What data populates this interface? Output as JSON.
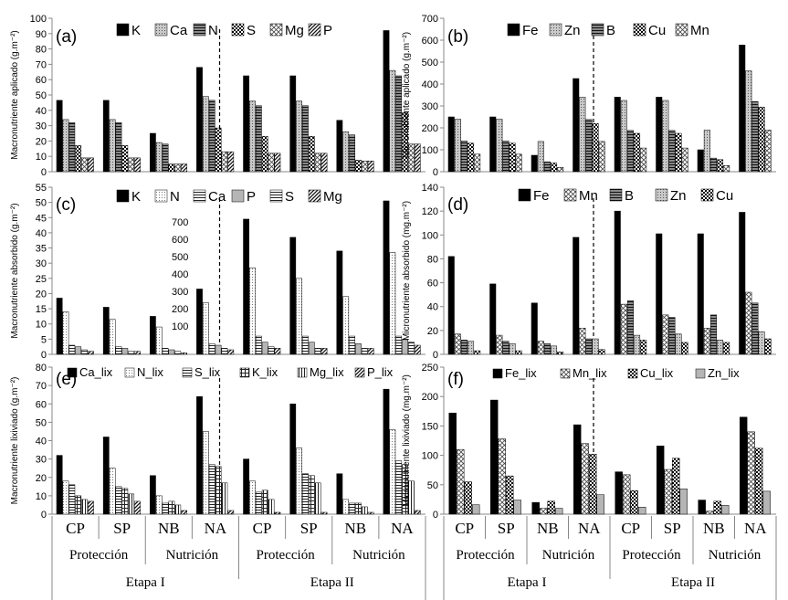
{
  "xaxis": {
    "treatments": [
      "CP",
      "SP",
      "NB",
      "NA",
      "CP",
      "SP",
      "NB",
      "NA"
    ],
    "groups": [
      "Protección",
      "Nutrición",
      "Protección",
      "Nutrición"
    ],
    "stages": [
      "Etapa I",
      "Etapa II"
    ]
  },
  "styles": {
    "K": {
      "type": "solid",
      "color": "#000000"
    },
    "Ca": {
      "type": "dots",
      "color": "#9a9a9a"
    },
    "N": {
      "type": "hlines",
      "color": "#3a3a3a"
    },
    "S": {
      "type": "check",
      "color": "#000000"
    },
    "Mg": {
      "type": "diamond",
      "color": "#333333"
    },
    "P": {
      "type": "diag",
      "color": "#222222"
    },
    "Fe": {
      "type": "solid",
      "color": "#000000"
    },
    "Zn": {
      "type": "dots",
      "color": "#9a9a9a"
    },
    "B": {
      "type": "hlines",
      "color": "#3a3a3a"
    },
    "Cu": {
      "type": "check",
      "color": "#000000"
    },
    "Mn": {
      "type": "diamond",
      "color": "#333333"
    },
    "N_open": {
      "type": "dots_light",
      "color": "#aaaaaa"
    },
    "Ca_open": {
      "type": "hlines_open",
      "color": "#333333"
    },
    "S_open": {
      "type": "hlines_open",
      "color": "#333333"
    },
    "K_grid": {
      "type": "grid",
      "color": "#222222"
    },
    "Mg_v": {
      "type": "vlines",
      "color": "#333333"
    },
    "Zn_grey": {
      "type": "lightgrey",
      "color": "#a8a8a8"
    }
  },
  "chart_data": [
    {
      "id": "a",
      "panel_label": "(a)",
      "type": "bar",
      "ylabel": "Macronutriente aplicado (g.m⁻²)",
      "ylim": [
        0,
        100
      ],
      "yticks": [
        0,
        10,
        20,
        30,
        40,
        50,
        60,
        70,
        80,
        90,
        100
      ],
      "categories": [
        "CP",
        "SP",
        "NB",
        "NA",
        "CP",
        "SP",
        "NB",
        "NA"
      ],
      "series": [
        {
          "name": "K",
          "style": "K",
          "values": [
            46.5,
            46.5,
            25,
            68,
            62.5,
            62.5,
            33.5,
            92
          ]
        },
        {
          "name": "Ca",
          "style": "Ca",
          "values": [
            34,
            34,
            19,
            49,
            46,
            46,
            26,
            66
          ]
        },
        {
          "name": "N",
          "style": "N",
          "values": [
            32,
            32,
            18,
            46.5,
            43,
            43,
            24,
            62.5
          ]
        },
        {
          "name": "S",
          "style": "S",
          "values": [
            17,
            17,
            5,
            28.5,
            23,
            23,
            7.5,
            38.5
          ]
        },
        {
          "name": "Mg",
          "style": "Mg",
          "values": [
            9,
            9,
            5,
            13,
            12,
            12,
            7,
            18
          ]
        },
        {
          "name": "P",
          "style": "P",
          "values": [
            9,
            9,
            5,
            13,
            12,
            12,
            7,
            18
          ]
        }
      ]
    },
    {
      "id": "b",
      "panel_label": "(b)",
      "type": "bar",
      "ylabel": "Micronutriente aplicado (g.m⁻²)",
      "ylim": [
        0,
        700
      ],
      "yticks": [
        0,
        100,
        200,
        300,
        400,
        500,
        600,
        700
      ],
      "categories": [
        "CP",
        "SP",
        "NB",
        "NA",
        "CP",
        "SP",
        "NB",
        "NA"
      ],
      "series": [
        {
          "name": "Fe",
          "style": "Fe",
          "values": [
            250,
            250,
            75,
            425,
            340,
            340,
            100,
            578
          ]
        },
        {
          "name": "Zn",
          "style": "Zn",
          "values": [
            240,
            240,
            138,
            340,
            325,
            325,
            190,
            460
          ]
        },
        {
          "name": "B",
          "style": "B",
          "values": [
            140,
            140,
            45,
            238,
            188,
            188,
            62,
            320
          ]
        },
        {
          "name": "Cu",
          "style": "Cu",
          "values": [
            130,
            130,
            40,
            220,
            175,
            175,
            55,
            295
          ]
        },
        {
          "name": "Mn",
          "style": "Mn",
          "values": [
            80,
            80,
            20,
            138,
            108,
            108,
            28,
            190
          ]
        }
      ]
    },
    {
      "id": "c",
      "panel_label": "(c)",
      "type": "bar",
      "ylabel": "Macronutriente absorbido (g.m⁻²)",
      "ylim": [
        0,
        55
      ],
      "yticks": [
        0,
        5,
        10,
        15,
        20,
        25,
        30,
        35,
        40,
        45,
        50,
        55
      ],
      "inset_axis": {
        "ticks": [
          100,
          200,
          300,
          400,
          500,
          600,
          700
        ]
      },
      "categories": [
        "CP",
        "SP",
        "NB",
        "NA",
        "CP",
        "SP",
        "NB",
        "NA"
      ],
      "series": [
        {
          "name": "K",
          "style": "K",
          "values": [
            18.5,
            15.5,
            12.5,
            21.5,
            44.5,
            38.5,
            34,
            50.5
          ]
        },
        {
          "name": "N",
          "style": "N_open",
          "values": [
            14,
            11.5,
            9,
            17,
            28.5,
            25,
            19,
            33.5
          ]
        },
        {
          "name": "Ca",
          "style": "Ca_open",
          "values": [
            3,
            2.5,
            2,
            3.5,
            6,
            6,
            6,
            6
          ]
        },
        {
          "name": "P",
          "style": "Zn_grey",
          "values": [
            2.5,
            2,
            1.5,
            3,
            4,
            4,
            3.5,
            5
          ]
        },
        {
          "name": "S",
          "style": "S_open",
          "values": [
            1.5,
            1,
            1,
            2,
            2.5,
            2,
            2,
            4
          ]
        },
        {
          "name": "Mg",
          "style": "P",
          "values": [
            1,
            1,
            0.5,
            1.5,
            2,
            2,
            2,
            3
          ]
        }
      ]
    },
    {
      "id": "d",
      "panel_label": "(d)",
      "type": "bar",
      "ylabel": "Micronutriente absorbido (mg.m⁻²)",
      "ylim": [
        0,
        140
      ],
      "yticks": [
        0,
        20,
        40,
        60,
        80,
        100,
        120,
        140
      ],
      "categories": [
        "CP",
        "SP",
        "NB",
        "NA",
        "CP",
        "SP",
        "NB",
        "NA"
      ],
      "series": [
        {
          "name": "Fe",
          "style": "Fe",
          "values": [
            82,
            59,
            43,
            98,
            120,
            101,
            101,
            119
          ]
        },
        {
          "name": "Mn",
          "style": "Mn",
          "values": [
            17,
            16,
            11,
            22,
            42,
            33,
            22,
            52
          ]
        },
        {
          "name": "B",
          "style": "B",
          "values": [
            12,
            11,
            9,
            13,
            45,
            31,
            33,
            43
          ]
        },
        {
          "name": "Zn",
          "style": "Zn",
          "values": [
            11,
            9,
            7,
            13,
            16,
            17,
            12,
            19
          ]
        },
        {
          "name": "Cu",
          "style": "Cu",
          "values": [
            3,
            3,
            2,
            4,
            12,
            10,
            10,
            13
          ]
        }
      ]
    },
    {
      "id": "e",
      "panel_label": "(e)",
      "type": "bar",
      "ylabel": "Macronutriente lixiviado (g.m⁻²)",
      "ylim": [
        0,
        80
      ],
      "yticks": [
        0,
        10,
        20,
        30,
        40,
        50,
        60,
        70,
        80
      ],
      "categories": [
        "CP",
        "SP",
        "NB",
        "NA",
        "CP",
        "SP",
        "NB",
        "NA"
      ],
      "series": [
        {
          "name": "Ca_lix",
          "style": "K",
          "values": [
            32,
            42,
            21,
            64,
            30,
            60,
            22,
            68
          ]
        },
        {
          "name": "N_lix",
          "style": "N_open",
          "values": [
            18,
            25,
            10,
            45,
            18,
            36,
            8,
            46
          ]
        },
        {
          "name": "S_lix",
          "style": "S_open",
          "values": [
            16,
            15,
            6,
            27,
            12,
            22,
            6,
            29
          ]
        },
        {
          "name": "K_lix",
          "style": "K_grid",
          "values": [
            10,
            14,
            7,
            26,
            13,
            21,
            6,
            27
          ]
        },
        {
          "name": "Mg_lix",
          "style": "Mg_v",
          "values": [
            8,
            11,
            5,
            17,
            8,
            17,
            4,
            18
          ]
        },
        {
          "name": "P_lix",
          "style": "P",
          "values": [
            7,
            7,
            2,
            2,
            1,
            1,
            1,
            2
          ]
        }
      ]
    },
    {
      "id": "f",
      "panel_label": "(f)",
      "type": "bar",
      "ylabel": "Micronutriente lixiviado (mg.m⁻²)",
      "ylim": [
        0,
        250
      ],
      "yticks": [
        0,
        50,
        100,
        150,
        200,
        250
      ],
      "categories": [
        "CP",
        "SP",
        "NB",
        "NA",
        "CP",
        "SP",
        "NB",
        "NA"
      ],
      "series": [
        {
          "name": "Fe_lix",
          "style": "Fe",
          "values": [
            172,
            194,
            20,
            152,
            72,
            116,
            24,
            165
          ]
        },
        {
          "name": "Mn_lix",
          "style": "Mn",
          "values": [
            110,
            128,
            10,
            120,
            67,
            76,
            5,
            140
          ]
        },
        {
          "name": "Cu_lix",
          "style": "Cu",
          "values": [
            55,
            65,
            22,
            102,
            40,
            95,
            22,
            112
          ]
        },
        {
          "name": "Zn_lix",
          "style": "Zn_grey",
          "values": [
            16,
            24,
            10,
            33,
            12,
            43,
            15,
            39
          ]
        }
      ]
    }
  ]
}
